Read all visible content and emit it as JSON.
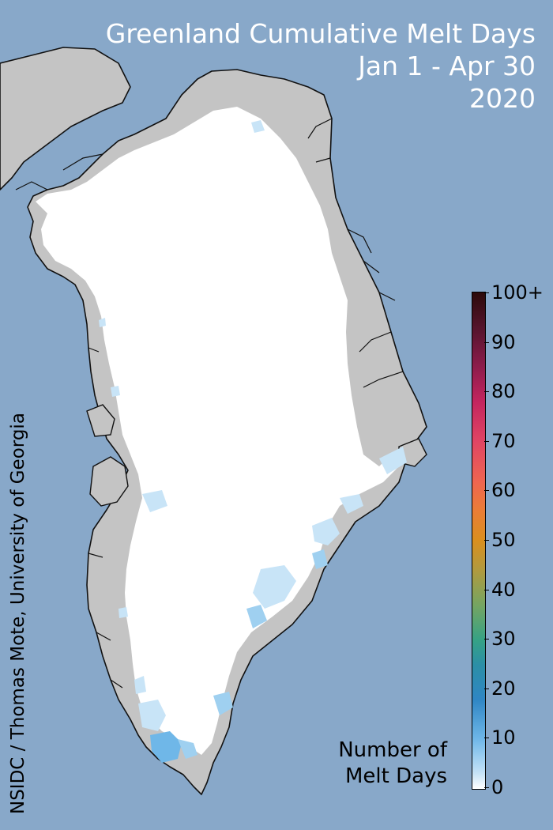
{
  "title": {
    "line1": "Greenland Cumulative Melt Days",
    "line2": "Jan 1 - Apr 30",
    "line3": "2020"
  },
  "credit": "NSIDC / Thomas Mote, University of Georgia",
  "legend": {
    "title_line1": "Number of",
    "title_line2": "Melt Days",
    "ticks": [
      "0",
      "10",
      "20",
      "30",
      "40",
      "50",
      "60",
      "70",
      "80",
      "90",
      "100+"
    ]
  },
  "colors": {
    "ocean": "#88a8c9",
    "land": "#c4c4c4",
    "ice_no_melt": "#ffffff",
    "melt_low": "#c8e4f7",
    "melt_mid": "#6fb7e8"
  }
}
